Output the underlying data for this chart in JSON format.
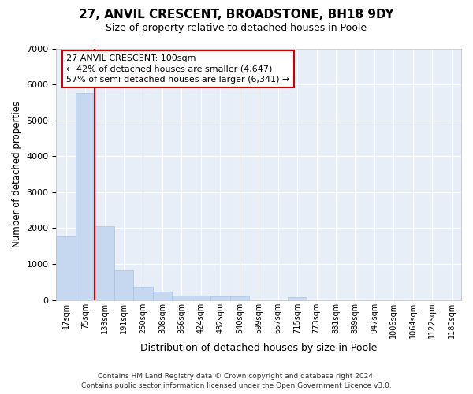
{
  "title": "27, ANVIL CRESCENT, BROADSTONE, BH18 9DY",
  "subtitle": "Size of property relative to detached houses in Poole",
  "xlabel": "Distribution of detached houses by size in Poole",
  "ylabel": "Number of detached properties",
  "footer_line1": "Contains HM Land Registry data © Crown copyright and database right 2024.",
  "footer_line2": "Contains public sector information licensed under the Open Government Licence v3.0.",
  "annotation_line1": "27 ANVIL CRESCENT: 100sqm",
  "annotation_line2": "← 42% of detached houses are smaller (4,647)",
  "annotation_line3": "57% of semi-detached houses are larger (6,341) →",
  "bar_color": "#c5d8f0",
  "bar_edge_color": "#aac4e0",
  "vline_color": "#cc0000",
  "annotation_box_edge": "#cc0000",
  "background_color": "#ffffff",
  "plot_bg_color": "#e8eef8",
  "grid_color": "#ffffff",
  "categories": [
    "17sqm",
    "75sqm",
    "133sqm",
    "191sqm",
    "250sqm",
    "308sqm",
    "366sqm",
    "424sqm",
    "482sqm",
    "540sqm",
    "599sqm",
    "657sqm",
    "715sqm",
    "773sqm",
    "831sqm",
    "889sqm",
    "947sqm",
    "1006sqm",
    "1064sqm",
    "1122sqm",
    "1180sqm"
  ],
  "values": [
    1780,
    5750,
    2060,
    830,
    370,
    230,
    130,
    120,
    100,
    100,
    0,
    0,
    90,
    0,
    0,
    0,
    0,
    0,
    0,
    0,
    0
  ],
  "ylim": [
    0,
    7000
  ],
  "yticks": [
    0,
    1000,
    2000,
    3000,
    4000,
    5000,
    6000,
    7000
  ],
  "vline_x_between": 1.5
}
